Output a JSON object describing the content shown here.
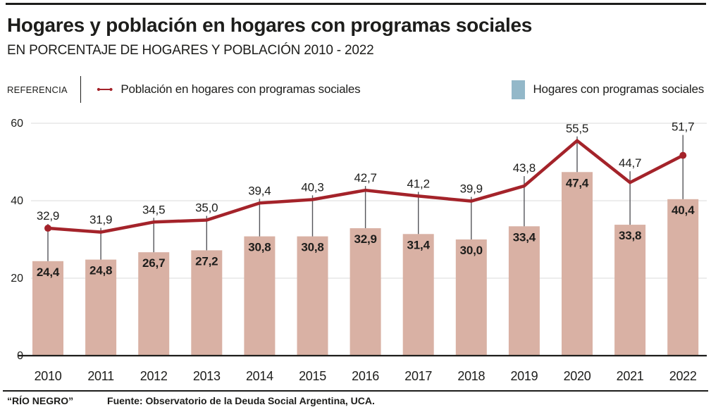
{
  "header": {
    "title": "Hogares y población en hogares con programas sociales",
    "subtitle": "EN PORCENTAJE DE HOGARES Y POBLACIÓN 2010 - 2022"
  },
  "legend": {
    "reference_label": "REFERENCIA",
    "line_series_label": "Población en hogares con programas sociales",
    "bar_series_label": "Hogares con programas sociales",
    "line_color": "#a4232a",
    "bar_swatch_color": "#93b8c9"
  },
  "chart_data": {
    "type": "bar+line",
    "categories": [
      "2010",
      "2011",
      "2012",
      "2013",
      "2014",
      "2015",
      "2016",
      "2017",
      "2018",
      "2019",
      "2020",
      "2021",
      "2022"
    ],
    "series": [
      {
        "name": "Población en hogares con programas sociales",
        "type": "line",
        "color": "#a4232a",
        "values": [
          32.9,
          31.9,
          34.5,
          35.0,
          39.4,
          40.3,
          42.7,
          41.2,
          39.9,
          43.8,
          55.5,
          44.7,
          51.7
        ],
        "labels": [
          "32,9",
          "31,9",
          "34,5",
          "35,0",
          "39,4",
          "40,3",
          "42,7",
          "41,2",
          "39,9",
          "43,8",
          "55,5",
          "44,7",
          "51,7"
        ]
      },
      {
        "name": "Hogares con programas sociales",
        "type": "bar",
        "color": "#d9b1a4",
        "values": [
          24.4,
          24.8,
          26.7,
          27.2,
          30.8,
          30.8,
          32.9,
          31.4,
          30.0,
          33.4,
          47.4,
          33.8,
          40.4
        ],
        "labels": [
          "24,4",
          "24,8",
          "26,7",
          "27,2",
          "30,8",
          "30,8",
          "32,9",
          "31,4",
          "30,0",
          "33,4",
          "47,4",
          "33,8",
          "40,4"
        ]
      }
    ],
    "title": "Hogares y población en hogares con programas sociales",
    "xlabel": "",
    "ylabel": "",
    "yticks": [
      0,
      20,
      40,
      60
    ],
    "ytick_labels": [
      "0",
      "20",
      "40",
      "60"
    ],
    "ylim": [
      0,
      60
    ],
    "grid": true,
    "legend_position": "top"
  },
  "footer": {
    "brand": "“RÍO NEGRO”",
    "source": "Fuente: Observatorio de la Deuda Social Argentina, UCA."
  }
}
